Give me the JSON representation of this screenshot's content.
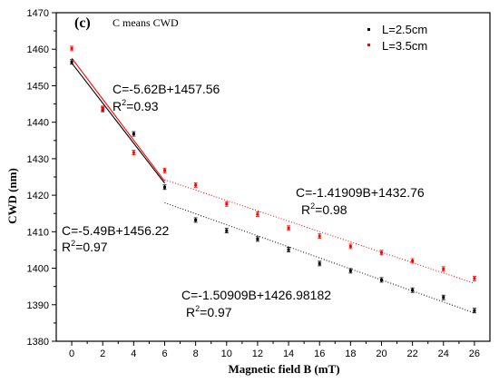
{
  "chart_data": {
    "type": "scatter",
    "panel_label": "(c)",
    "note": "C means CWD",
    "xlabel": "Magnetic field B (mT)",
    "ylabel": "CWD (nm)",
    "xlim": [
      -1,
      27
    ],
    "ylim": [
      1380,
      1470
    ],
    "xticks": [
      0,
      2,
      4,
      6,
      8,
      10,
      12,
      14,
      16,
      18,
      20,
      22,
      24,
      26
    ],
    "yticks": [
      1380,
      1390,
      1400,
      1410,
      1420,
      1430,
      1440,
      1450,
      1460,
      1470
    ],
    "legend_position": "top-right",
    "series": [
      {
        "name": "L=2.5cm",
        "color": "#000000",
        "x": [
          0,
          2,
          4,
          6,
          8,
          10,
          12,
          14,
          16,
          18,
          20,
          22,
          24,
          26
        ],
        "y": [
          1456.5,
          1443.5,
          1436.8,
          1422.2,
          1413.2,
          1410.3,
          1408.0,
          1405.1,
          1401.3,
          1399.3,
          1396.8,
          1394.0,
          1392.0,
          1388.4
        ]
      },
      {
        "name": "L=3.5cm",
        "color": "#ff0000",
        "x": [
          0,
          2,
          4,
          6,
          8,
          10,
          12,
          14,
          16,
          18,
          20,
          22,
          24,
          26
        ],
        "y": [
          1460.2,
          1443.8,
          1431.7,
          1426.8,
          1422.8,
          1417.6,
          1414.8,
          1411.0,
          1408.8,
          1406.0,
          1404.3,
          1402.0,
          1399.8,
          1397.2
        ]
      }
    ],
    "fits": [
      {
        "series": "L=3.5cm",
        "slope": -5.62,
        "intercept": 1457.56,
        "x_range": [
          0,
          6
        ],
        "style": "solid",
        "color": "#ff0000",
        "equation": "C=-5.62B+1457.56",
        "r2_prefix": "R",
        "r2_exp": "2",
        "r2_value": "=0.93"
      },
      {
        "series": "L=2.5cm",
        "slope": -5.49,
        "intercept": 1456.22,
        "x_range": [
          0,
          6
        ],
        "style": "solid",
        "color": "#000000",
        "equation": "C=-5.49B+1456.22",
        "r2_prefix": "R",
        "r2_exp": "2",
        "r2_value": "=0.97"
      },
      {
        "series": "L=3.5cm",
        "slope": -1.41909,
        "intercept": 1432.76,
        "x_range": [
          6,
          26
        ],
        "style": "dotted",
        "color": "#ff0000",
        "equation": "C=-1.41909B+1432.76",
        "r2_prefix": "R",
        "r2_exp": "2",
        "r2_value": "=0.98"
      },
      {
        "series": "L=2.5cm",
        "slope": -1.50909,
        "intercept": 1426.98182,
        "x_range": [
          6,
          26
        ],
        "style": "dotted",
        "color": "#000000",
        "equation": "C=-1.50909B+1426.98182",
        "r2_prefix": "R",
        "r2_exp": "2",
        "r2_value": "=0.97"
      }
    ]
  }
}
